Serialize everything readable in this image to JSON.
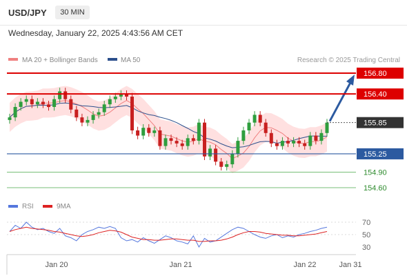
{
  "header": {
    "symbol": "USD/JPY",
    "timeframe": "30 MIN",
    "datetime": "Wednesday, January 22, 2025 4:43:56 AM CET"
  },
  "legend": {
    "ma20_label": "MA 20 + Bollinger Bands",
    "ma50_label": "MA 50",
    "credit": "Research © 2025 Trading Central",
    "colors": {
      "ma20": "#f08080",
      "ma50": "#2c4f8c",
      "band": "#ffd6d6"
    }
  },
  "levels": [
    {
      "value": "156.80",
      "price": 156.8,
      "style": "resistance"
    },
    {
      "value": "156.40",
      "price": 156.4,
      "style": "resistance"
    },
    {
      "value": "155.85",
      "price": 155.85,
      "style": "current"
    },
    {
      "value": "155.25",
      "price": 155.25,
      "style": "pivot"
    },
    {
      "value": "154.90",
      "price": 154.9,
      "style": "support"
    },
    {
      "value": "154.60",
      "price": 154.6,
      "style": "support"
    }
  ],
  "rsi_legend": {
    "rsi_label": "RSI",
    "ma_label": "9MA",
    "rsi_color": "#5577dd",
    "ma_color": "#dd2222"
  },
  "rsi_levels": [
    "70",
    "50",
    "30"
  ],
  "x_axis_labels": [
    "Jan 20",
    "Jan 21",
    "Jan 22",
    "Jan 31"
  ],
  "chart_data": {
    "type": "candlestick",
    "price_series_close": [
      155.95,
      156.15,
      156.25,
      156.3,
      156.2,
      156.25,
      156.2,
      156.15,
      156.3,
      156.45,
      156.3,
      156.1,
      155.95,
      155.85,
      155.9,
      156.0,
      156.05,
      156.2,
      156.3,
      156.35,
      156.4,
      156.35,
      155.7,
      155.6,
      155.75,
      155.65,
      155.7,
      155.4,
      155.55,
      155.5,
      155.45,
      155.4,
      155.55,
      155.5,
      155.85,
      155.2,
      155.35,
      155.1,
      155.0,
      155.05,
      155.25,
      155.5,
      155.7,
      155.85,
      156.0,
      155.85,
      155.65,
      155.45,
      155.4,
      155.5,
      155.45,
      155.5,
      155.45,
      155.4,
      155.6,
      155.5,
      155.65,
      155.85
    ],
    "ma20_color": "#f08080",
    "ma50_color": "#2c4f8c",
    "rsi_values": [
      55,
      65,
      60,
      70,
      62,
      58,
      60,
      55,
      52,
      60,
      48,
      45,
      40,
      50,
      55,
      58,
      62,
      60,
      63,
      60,
      45,
      40,
      42,
      38,
      45,
      40,
      36,
      42,
      48,
      45,
      40,
      38,
      35,
      48,
      30,
      44,
      38,
      40,
      46,
      52,
      58,
      62,
      60,
      55,
      50,
      46,
      44,
      48,
      50,
      45,
      48,
      46,
      50,
      52,
      55,
      57,
      60,
      62
    ],
    "rsi_ma_values": [
      55,
      58,
      60,
      62,
      60,
      59,
      58,
      57,
      55,
      54,
      52,
      50,
      48,
      47,
      48,
      50,
      53,
      55,
      57,
      56,
      54,
      50,
      46,
      44,
      42,
      42,
      41,
      41,
      42,
      43,
      43,
      42,
      41,
      41,
      39,
      39,
      40,
      40,
      41,
      43,
      46,
      50,
      53,
      55,
      55,
      54,
      52,
      51,
      50,
      49,
      49,
      48,
      48,
      49,
      50,
      51,
      53,
      55
    ],
    "forecast_target": 156.8,
    "y_levels": [
      156.8,
      156.4,
      155.85,
      155.25,
      154.9,
      154.6
    ],
    "rsi_ylim": [
      30,
      70
    ]
  }
}
